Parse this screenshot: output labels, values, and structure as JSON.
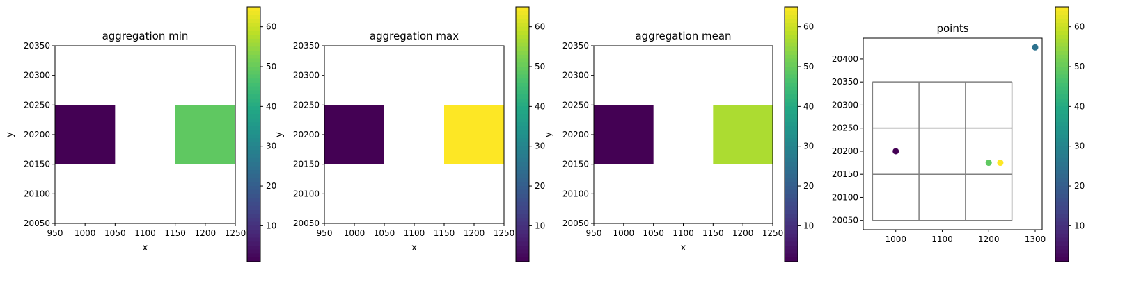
{
  "chart_data": [
    {
      "type": "heatmap",
      "title": "aggregation min",
      "xlabel": "x",
      "ylabel": "y",
      "xlim": [
        950,
        1250
      ],
      "ylim": [
        20050,
        20350
      ],
      "xticks": [
        950,
        1000,
        1050,
        1100,
        1150,
        1200,
        1250
      ],
      "yticks": [
        20050,
        20100,
        20150,
        20200,
        20250,
        20300,
        20350
      ],
      "cell_size": 100,
      "cells": [
        {
          "x0": 950,
          "x1": 1050,
          "y0": 20150,
          "y1": 20250,
          "value": 1
        },
        {
          "x0": 1150,
          "x1": 1250,
          "y0": 20150,
          "y1": 20250,
          "value": 49
        }
      ],
      "colorbar": {
        "cmap": "viridis",
        "min": 1,
        "max": 65,
        "ticks": [
          10,
          20,
          30,
          40,
          50,
          60
        ]
      }
    },
    {
      "type": "heatmap",
      "title": "aggregation max",
      "xlabel": "x",
      "ylabel": "y",
      "xlim": [
        950,
        1250
      ],
      "ylim": [
        20050,
        20350
      ],
      "xticks": [
        950,
        1000,
        1050,
        1100,
        1150,
        1200,
        1250
      ],
      "yticks": [
        20050,
        20100,
        20150,
        20200,
        20250,
        20300,
        20350
      ],
      "cell_size": 100,
      "cells": [
        {
          "x0": 950,
          "x1": 1050,
          "y0": 20150,
          "y1": 20250,
          "value": 1
        },
        {
          "x0": 1150,
          "x1": 1250,
          "y0": 20150,
          "y1": 20250,
          "value": 65
        }
      ],
      "colorbar": {
        "cmap": "viridis",
        "min": 1,
        "max": 65,
        "ticks": [
          10,
          20,
          30,
          40,
          50,
          60
        ]
      }
    },
    {
      "type": "heatmap",
      "title": "aggregation mean",
      "xlabel": "x",
      "ylabel": "y",
      "xlim": [
        950,
        1250
      ],
      "ylim": [
        20050,
        20350
      ],
      "xticks": [
        950,
        1000,
        1050,
        1100,
        1150,
        1200,
        1250
      ],
      "yticks": [
        20050,
        20100,
        20150,
        20200,
        20250,
        20300,
        20350
      ],
      "cell_size": 100,
      "cells": [
        {
          "x0": 950,
          "x1": 1050,
          "y0": 20150,
          "y1": 20250,
          "value": 1
        },
        {
          "x0": 1150,
          "x1": 1250,
          "y0": 20150,
          "y1": 20250,
          "value": 57
        }
      ],
      "colorbar": {
        "cmap": "viridis",
        "min": 1,
        "max": 65,
        "ticks": [
          10,
          20,
          30,
          40,
          50,
          60
        ]
      }
    },
    {
      "type": "scatter",
      "title": "points",
      "xlim": [
        930,
        1315
      ],
      "ylim": [
        20030,
        20445
      ],
      "xticks": [
        1000,
        1100,
        1200,
        1300
      ],
      "yticks": [
        20050,
        20100,
        20150,
        20200,
        20250,
        20300,
        20350,
        20400
      ],
      "points": [
        {
          "x": 1000,
          "y": 20200,
          "value": 1
        },
        {
          "x": 1200,
          "y": 20175,
          "value": 49
        },
        {
          "x": 1225,
          "y": 20175,
          "value": 65
        },
        {
          "x": 1300,
          "y": 20425,
          "value": 25
        }
      ],
      "grid_lines": {
        "x": [
          950,
          1050,
          1150,
          1250
        ],
        "y": [
          20050,
          20150,
          20250,
          20350
        ],
        "color": "#808080"
      },
      "colorbar": {
        "cmap": "viridis",
        "min": 1,
        "max": 65,
        "ticks": [
          10,
          20,
          30,
          40,
          50,
          60
        ]
      }
    }
  ]
}
